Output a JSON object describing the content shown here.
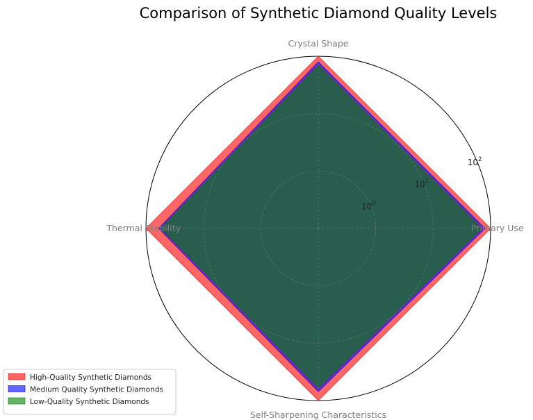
{
  "chart_data": {
    "type": "radar",
    "title": "Comparison of Synthetic Diamond Quality Levels",
    "axes": [
      "Primary Use",
      "Crystal Shape",
      "Thermal Stability",
      "Self-Sharpening Characteristics"
    ],
    "scale": "log",
    "rlim": [
      0.1,
      100
    ],
    "rticks": [
      1,
      10,
      100
    ],
    "rtick_labels": [
      {
        "base": "10",
        "exp": "0"
      },
      {
        "base": "10",
        "exp": "1"
      },
      {
        "base": "10",
        "exp": "2"
      }
    ],
    "grid": true,
    "legend_position": "lower-left",
    "series": [
      {
        "name": "High-Quality Synthetic Diamonds",
        "values": [
          100,
          100,
          100,
          100
        ],
        "color": "#ff0000",
        "alpha": 0.6
      },
      {
        "name": "Medium Quality Synthetic Diamonds",
        "values": [
          80,
          80,
          60,
          70
        ],
        "color": "#0000ff",
        "alpha": 0.6
      },
      {
        "name": "Low-Quality Synthetic Diamonds",
        "values": [
          70,
          70,
          55,
          60
        ],
        "color": "#008000",
        "alpha": 0.6
      }
    ]
  }
}
